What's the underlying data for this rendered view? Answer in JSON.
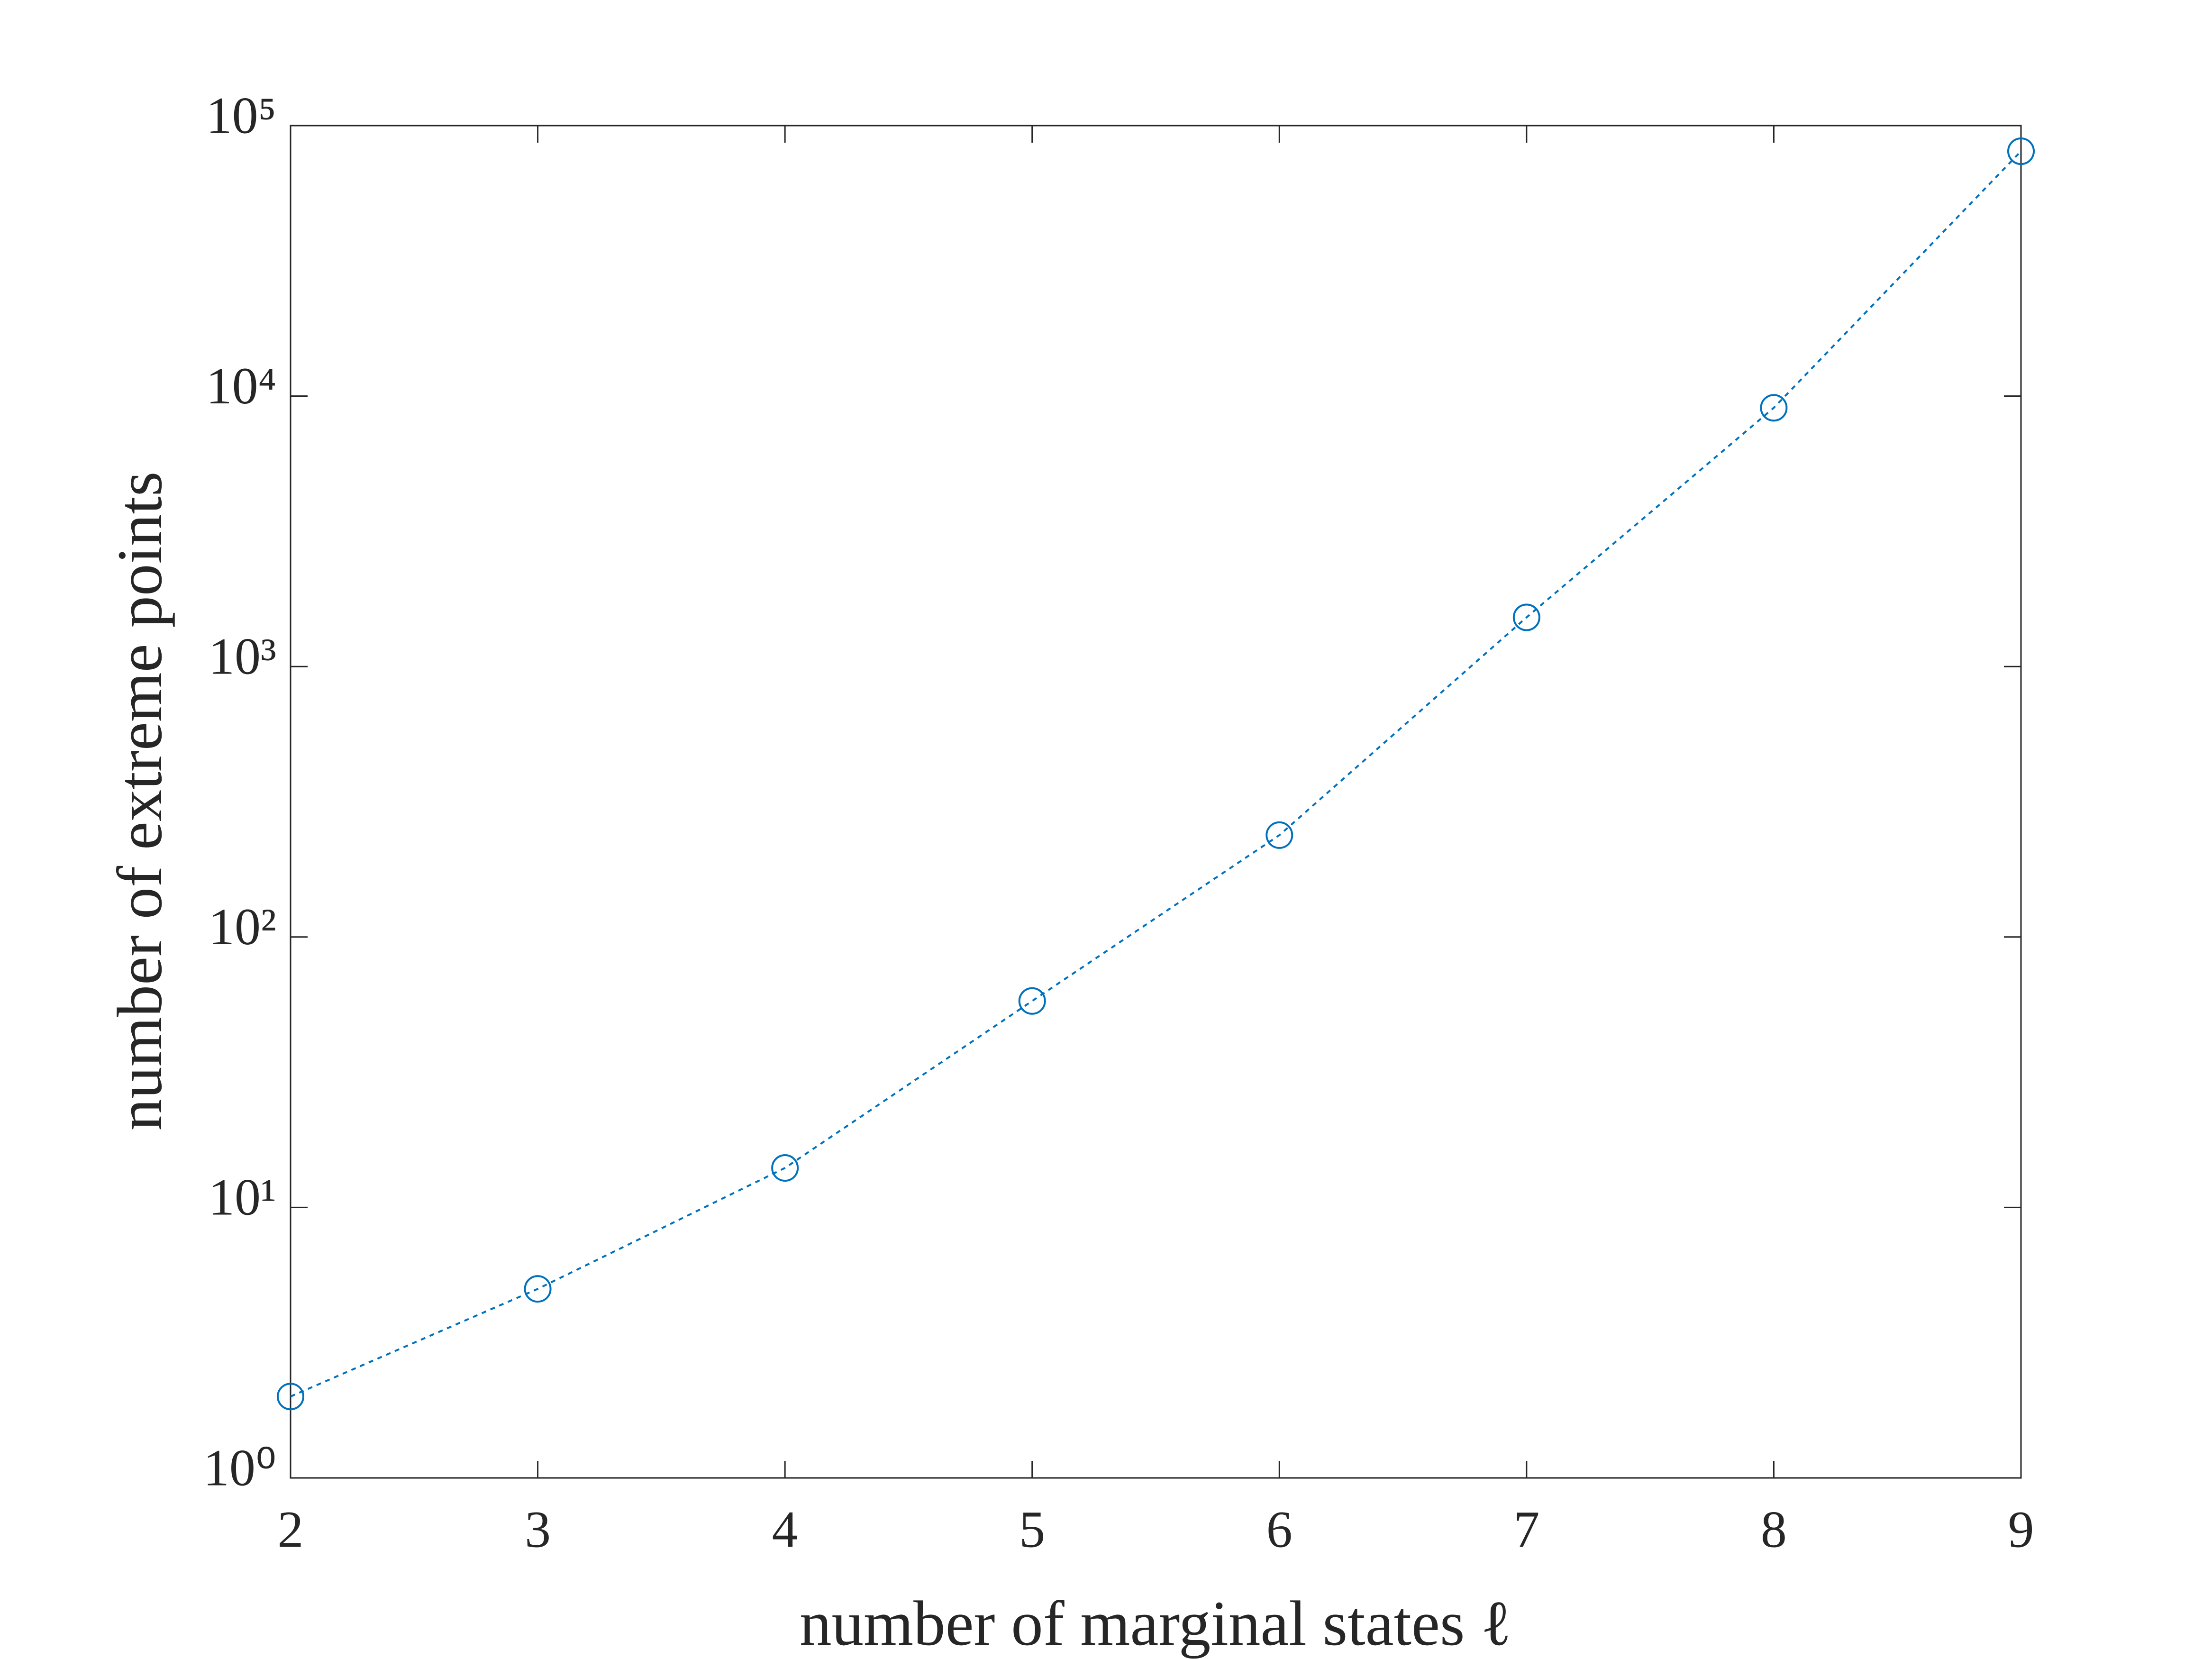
{
  "chart_data": {
    "type": "line",
    "xlabel": "number of marginal states ℓ",
    "ylabel": "number of extreme points",
    "x": [
      2,
      3,
      4,
      5,
      6,
      7,
      8,
      9
    ],
    "series": [
      {
        "color": "#0072bd",
        "values": [
          2,
          5,
          14,
          58,
          238,
          1520,
          9050,
          80400
        ]
      }
    ],
    "xlim": [
      2,
      9
    ],
    "xticks": [
      2,
      3,
      4,
      5,
      6,
      7,
      8,
      9
    ],
    "ylim": [
      1,
      100000
    ],
    "yticks": [
      {
        "value": 1,
        "label": "10⁰"
      },
      {
        "value": 10,
        "label": "10¹"
      },
      {
        "value": 100,
        "label": "10²"
      },
      {
        "value": 1000,
        "label": "10³"
      },
      {
        "value": 10000,
        "label": "10⁴"
      },
      {
        "value": 100000,
        "label": "10⁵"
      }
    ],
    "ylog": true,
    "grid": false
  }
}
